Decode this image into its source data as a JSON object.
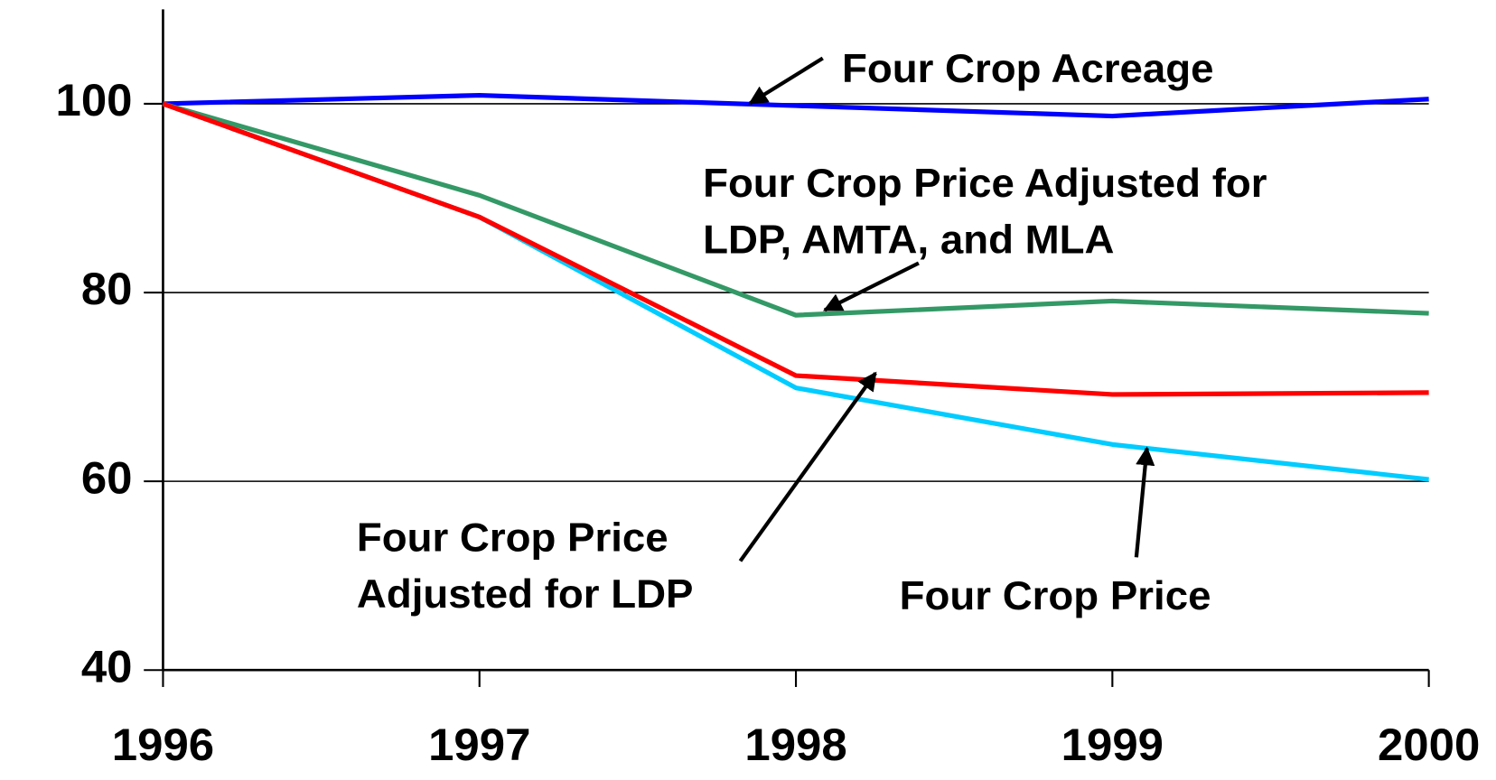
{
  "chart_data": {
    "type": "line",
    "x": [
      1996,
      1997,
      1998,
      1999,
      2000
    ],
    "xlim": [
      1996,
      2000
    ],
    "xticks": [
      1996,
      1997,
      1998,
      1999,
      2000
    ],
    "ylim": [
      40,
      110
    ],
    "yticks": [
      40,
      60,
      80,
      100
    ],
    "grid": true,
    "series": [
      {
        "color": "#0000ff",
        "values": [
          100,
          100.9,
          99.8,
          98.7,
          100.5
        ]
      },
      {
        "color": "#339966",
        "values": [
          100,
          90.3,
          77.6,
          79.1,
          77.8
        ]
      },
      {
        "color": "#00ccff",
        "values": [
          100,
          88,
          69.9,
          63.9,
          60.2
        ]
      },
      {
        "color": "#ff0000",
        "values": [
          100,
          88,
          71.2,
          69.2,
          69.4
        ]
      }
    ],
    "annotations": [
      {
        "lines": [
          "Four Crop Acreage"
        ]
      },
      {
        "lines": [
          "Four Crop Price Adjusted for",
          "LDP, AMTA, and MLA"
        ]
      },
      {
        "lines": [
          "Four Crop Price",
          "Adjusted for LDP"
        ]
      },
      {
        "lines": [
          "Four Crop Price"
        ]
      }
    ]
  }
}
